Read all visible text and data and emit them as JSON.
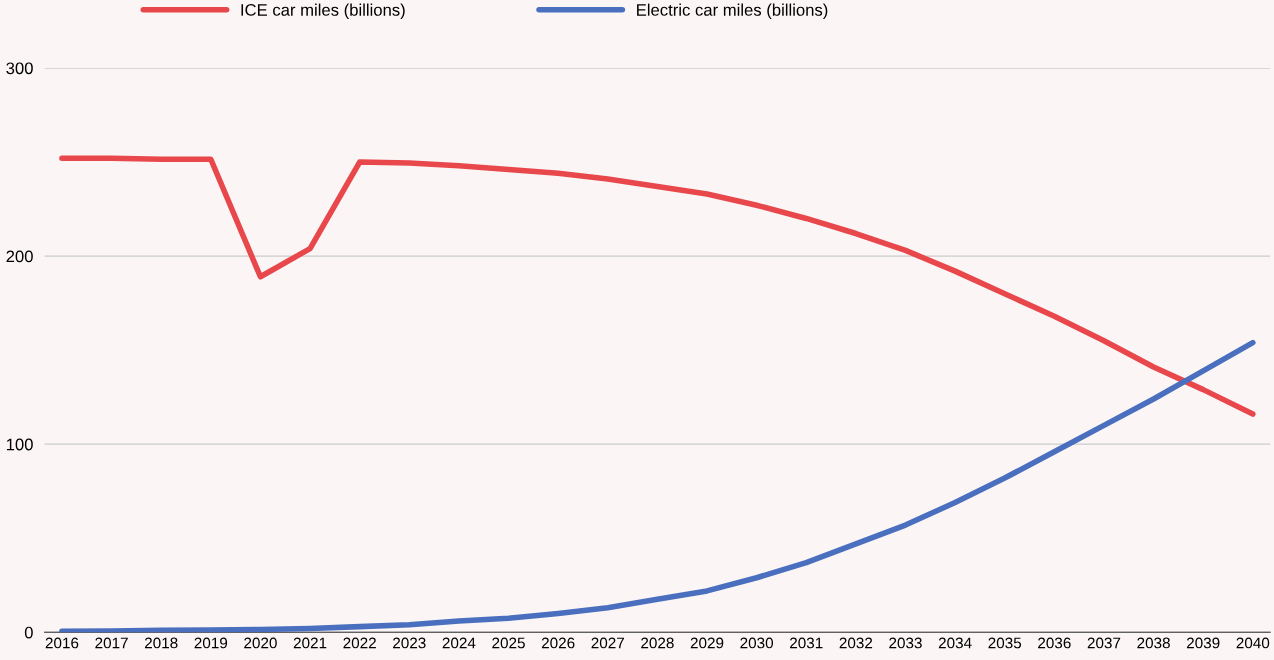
{
  "chart_data": {
    "type": "line",
    "categories": [
      "2016",
      "2017",
      "2018",
      "2019",
      "2020",
      "2021",
      "2022",
      "2023",
      "2024",
      "2025",
      "2026",
      "2027",
      "2028",
      "2029",
      "2030",
      "2031",
      "2032",
      "2033",
      "2034",
      "2035",
      "2036",
      "2037",
      "2038",
      "2039",
      "2040"
    ],
    "series": [
      {
        "name": "ICE car miles (billions)",
        "color": "#e8474b",
        "values": [
          252,
          252,
          251.5,
          251.5,
          189,
          204,
          250,
          249.5,
          248,
          246,
          244,
          241,
          237,
          233,
          227,
          220,
          212,
          203,
          192,
          180,
          168,
          155,
          141,
          129,
          116
        ]
      },
      {
        "name": "Electric car miles (billions)",
        "color": "#4a6fbf",
        "values": [
          0.5,
          0.7,
          1,
          1.2,
          1.5,
          2,
          3,
          4,
          6,
          7.5,
          10,
          13,
          17.5,
          22,
          29,
          37,
          47,
          57,
          69,
          82,
          96,
          110,
          124,
          139,
          154
        ]
      }
    ],
    "ylim": [
      0,
      300
    ],
    "yticks": [
      0,
      100,
      200,
      300
    ],
    "grid": "y",
    "legend": "top",
    "marker": "none",
    "line_style": "solid"
  }
}
